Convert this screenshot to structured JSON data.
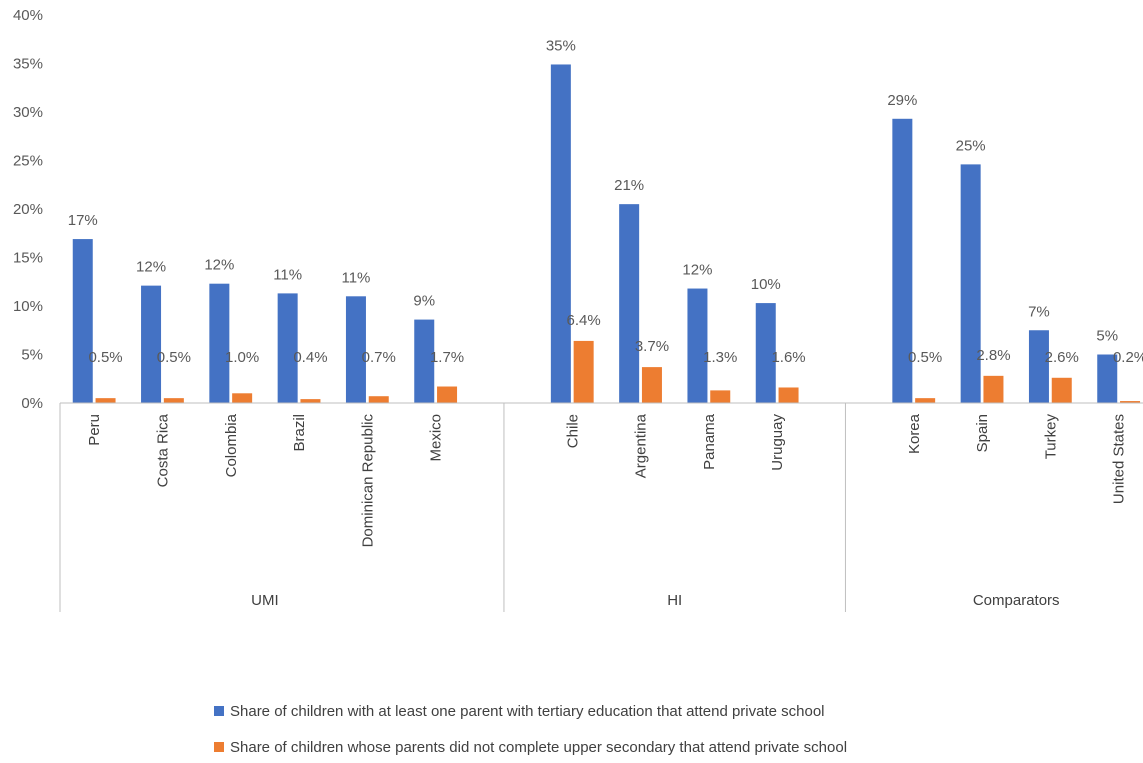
{
  "chart_data": {
    "type": "bar",
    "ylim": [
      0,
      40
    ],
    "y_ticks": [
      "0%",
      "5%",
      "10%",
      "15%",
      "20%",
      "25%",
      "30%",
      "35%",
      "40%"
    ],
    "grid": false,
    "legend_position": "bottom",
    "groups": [
      {
        "name": "UMI",
        "categories": [
          "Peru",
          "Costa Rica",
          "Colombia",
          "Brazil",
          "Dominican Republic",
          "Mexico"
        ]
      },
      {
        "name": "HI",
        "categories": [
          "Chile",
          "Argentina",
          "Panama",
          "Uruguay"
        ]
      },
      {
        "name": "Comparators",
        "categories": [
          "Korea",
          "Spain",
          "Turkey",
          "United States"
        ]
      }
    ],
    "series": [
      {
        "name": "Share of children with at least one parent with tertiary education  that attend private school",
        "color": "#4472C4",
        "values": [
          16.9,
          12.1,
          12.3,
          11.3,
          11.0,
          8.6,
          34.9,
          20.5,
          11.8,
          10.3,
          29.3,
          24.6,
          7.5,
          5.0
        ],
        "labels": [
          "17%",
          "12%",
          "12%",
          "11%",
          "11%",
          "9%",
          "35%",
          "21%",
          "12%",
          "10%",
          "29%",
          "25%",
          "7%",
          "5%"
        ]
      },
      {
        "name": "Share of children whose parents did not complete upper secondary  that attend private school",
        "color": "#ED7D31",
        "values": [
          0.5,
          0.5,
          1.0,
          0.4,
          0.7,
          1.7,
          6.4,
          3.7,
          1.3,
          1.6,
          0.5,
          2.8,
          2.6,
          0.2
        ],
        "labels": [
          "0.5%",
          "0.5%",
          "1.0%",
          "0.4%",
          "0.7%",
          "1.7%",
          "6.4%",
          "3.7%",
          "1.3%",
          "1.6%",
          "0.5%",
          "2.8%",
          "2.6%",
          "0.2%"
        ]
      }
    ]
  }
}
